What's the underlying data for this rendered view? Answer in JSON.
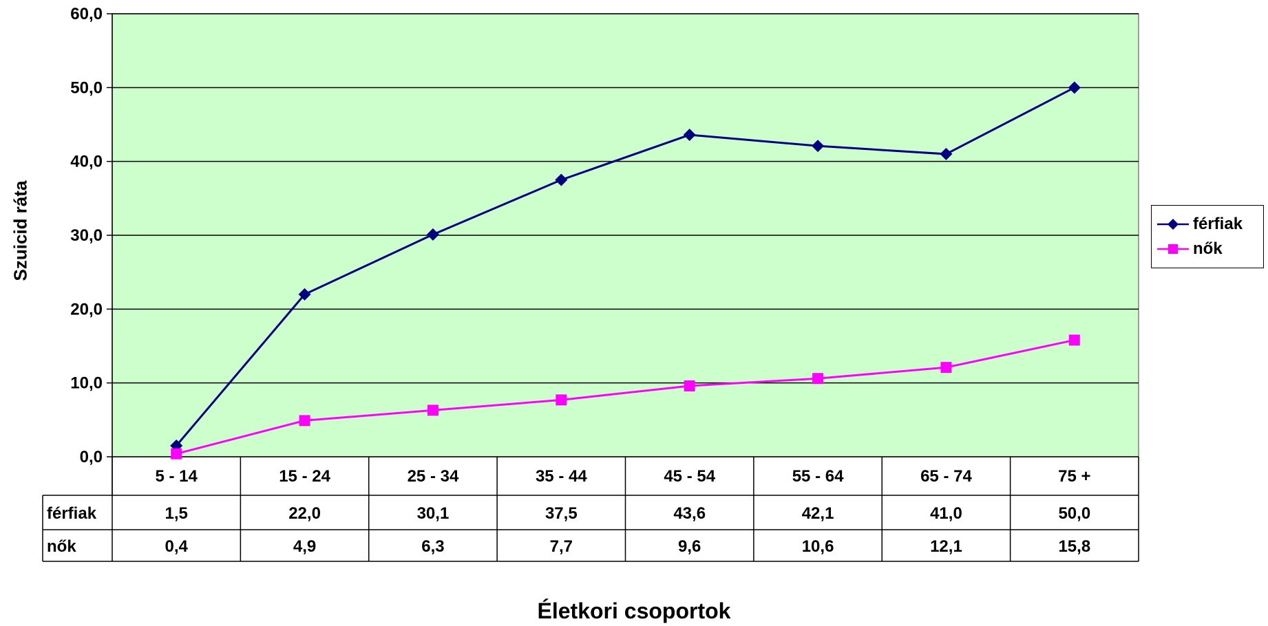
{
  "chart_data": {
    "type": "line",
    "categories": [
      "5 - 14",
      "15 - 24",
      "25 - 34",
      "35 - 44",
      "45 - 54",
      "55 - 64",
      "65 - 74",
      "75 +"
    ],
    "series": [
      {
        "name": "férfiak",
        "values": [
          1.5,
          22.0,
          30.1,
          37.5,
          43.6,
          42.1,
          41.0,
          50.0
        ],
        "labels": [
          "1,5",
          "22,0",
          "30,1",
          "37,5",
          "43,6",
          "42,1",
          "41,0",
          "50,0"
        ],
        "color": "#000080",
        "marker": "diamond"
      },
      {
        "name": "nők",
        "values": [
          0.4,
          4.9,
          6.3,
          7.7,
          9.6,
          10.6,
          12.1,
          15.8
        ],
        "labels": [
          "0,4",
          "4,9",
          "6,3",
          "7,7",
          "9,6",
          "10,6",
          "12,1",
          "15,8"
        ],
        "color": "#ff00ff",
        "marker": "square"
      }
    ],
    "xlabel": "Életkori csoportok",
    "ylabel": "Szuicid ráta",
    "ylim": [
      0,
      60
    ],
    "yticks": [
      0,
      10,
      20,
      30,
      40,
      50,
      60
    ],
    "ytick_labels": [
      "0,0",
      "10,0",
      "20,0",
      "30,0",
      "40,0",
      "50,0",
      "60,0"
    ],
    "grid": true,
    "plot_background": "#ccffcc",
    "legend_position": "right",
    "data_table": true
  }
}
